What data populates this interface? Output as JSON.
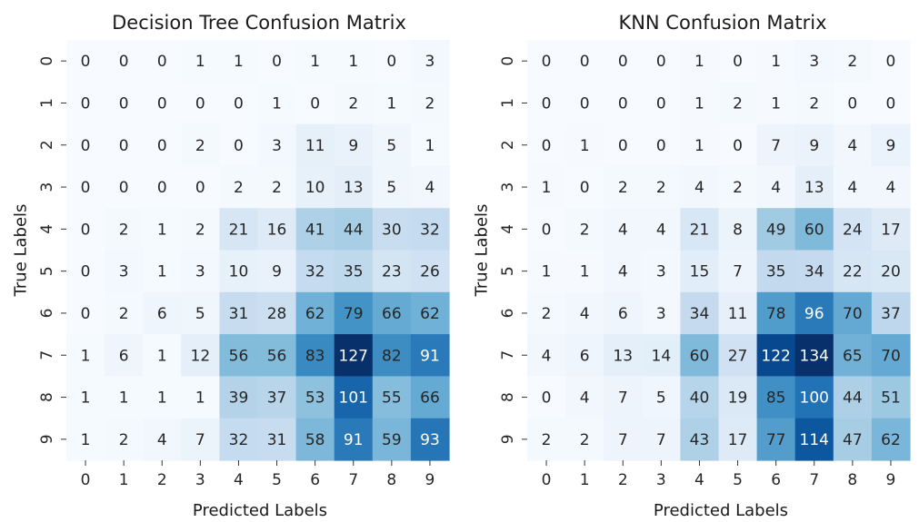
{
  "chart_data": [
    {
      "type": "heatmap",
      "title": "Decision Tree Confusion Matrix",
      "xlabel": "Predicted Labels",
      "ylabel": "True Labels",
      "x_tick_labels": [
        "0",
        "1",
        "2",
        "3",
        "4",
        "5",
        "6",
        "7",
        "8",
        "9"
      ],
      "y_tick_labels": [
        "0",
        "1",
        "2",
        "3",
        "4",
        "5",
        "6",
        "7",
        "8",
        "9"
      ],
      "colormap": "Blues",
      "color_min": 0,
      "color_max": 127,
      "matrix": [
        [
          0,
          0,
          0,
          1,
          1,
          0,
          1,
          1,
          0,
          3
        ],
        [
          0,
          0,
          0,
          0,
          0,
          1,
          0,
          2,
          1,
          2
        ],
        [
          0,
          0,
          0,
          2,
          0,
          3,
          11,
          9,
          5,
          1
        ],
        [
          0,
          0,
          0,
          0,
          2,
          2,
          10,
          13,
          5,
          4
        ],
        [
          0,
          2,
          1,
          2,
          21,
          16,
          41,
          44,
          30,
          32
        ],
        [
          0,
          3,
          1,
          3,
          10,
          9,
          32,
          35,
          23,
          26
        ],
        [
          0,
          2,
          6,
          5,
          31,
          28,
          62,
          79,
          66,
          62
        ],
        [
          1,
          6,
          1,
          12,
          56,
          56,
          83,
          127,
          82,
          91
        ],
        [
          1,
          1,
          1,
          1,
          39,
          37,
          53,
          101,
          55,
          66
        ],
        [
          1,
          2,
          4,
          7,
          32,
          31,
          58,
          91,
          59,
          93
        ]
      ]
    },
    {
      "type": "heatmap",
      "title": "KNN Confusion Matrix",
      "xlabel": "Predicted Labels",
      "ylabel": "True Labels",
      "x_tick_labels": [
        "0",
        "1",
        "2",
        "3",
        "4",
        "5",
        "6",
        "7",
        "8",
        "9"
      ],
      "y_tick_labels": [
        "0",
        "1",
        "2",
        "3",
        "4",
        "5",
        "6",
        "7",
        "8",
        "9"
      ],
      "colormap": "Blues",
      "color_min": 0,
      "color_max": 134,
      "matrix": [
        [
          0,
          0,
          0,
          0,
          1,
          0,
          1,
          3,
          2,
          0
        ],
        [
          0,
          0,
          0,
          0,
          1,
          2,
          1,
          2,
          0,
          0
        ],
        [
          0,
          1,
          0,
          0,
          1,
          0,
          7,
          9,
          4,
          9
        ],
        [
          1,
          0,
          2,
          2,
          4,
          2,
          4,
          13,
          4,
          4
        ],
        [
          0,
          2,
          4,
          4,
          21,
          8,
          49,
          60,
          24,
          17
        ],
        [
          1,
          1,
          4,
          3,
          15,
          7,
          35,
          34,
          22,
          20
        ],
        [
          2,
          4,
          6,
          3,
          34,
          11,
          78,
          96,
          70,
          37
        ],
        [
          4,
          6,
          13,
          14,
          60,
          27,
          122,
          134,
          65,
          70
        ],
        [
          0,
          4,
          7,
          5,
          40,
          19,
          85,
          100,
          44,
          51
        ],
        [
          2,
          2,
          7,
          7,
          43,
          17,
          77,
          114,
          47,
          62
        ]
      ]
    }
  ]
}
